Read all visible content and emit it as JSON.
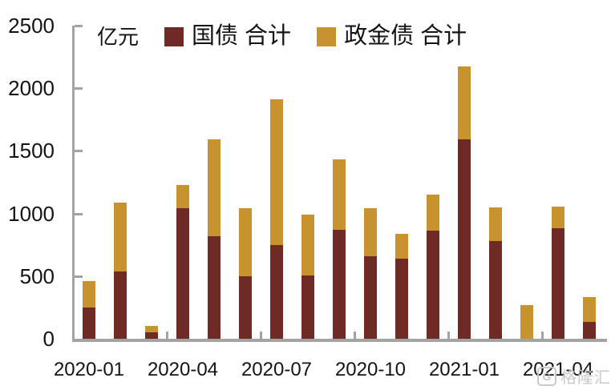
{
  "unit_label": "亿元",
  "legend": {
    "items": [
      {
        "label": "国债 合计",
        "color": "#6f2a25"
      },
      {
        "label": "政金债 合计",
        "color": "#c8922e"
      }
    ]
  },
  "watermark": {
    "logo_letter": "G",
    "text": "格隆汇"
  },
  "chart_data": {
    "type": "bar",
    "stacked": true,
    "title": "",
    "unit_label": "亿元",
    "categories": [
      "2020-01",
      "2020-02",
      "2020-03",
      "2020-04",
      "2020-05",
      "2020-06",
      "2020-07",
      "2020-08",
      "2020-09",
      "2020-10",
      "2020-11",
      "2020-12",
      "2021-01",
      "2021-02",
      "2021-03",
      "2021-04",
      "2021-05"
    ],
    "series": [
      {
        "name": "国债 合计",
        "color": "#6f2a25",
        "values": [
          250,
          535,
          50,
          1045,
          820,
          500,
          750,
          505,
          870,
          660,
          640,
          860,
          1590,
          780,
          0,
          880,
          135
        ]
      },
      {
        "name": "政金债 合计",
        "color": "#c8922e",
        "values": [
          210,
          550,
          55,
          180,
          775,
          540,
          1160,
          485,
          560,
          380,
          195,
          290,
          585,
          270,
          270,
          175,
          195
        ]
      }
    ],
    "totals": [
      460,
      1085,
      105,
      1225,
      1595,
      1040,
      1910,
      990,
      1430,
      1040,
      835,
      1150,
      2175,
      1050,
      270,
      1055,
      330
    ],
    "ylim": [
      0,
      2500
    ],
    "yticks": [
      0,
      500,
      1000,
      1500,
      2000,
      2500
    ],
    "xtick_labels": [
      "2020-01",
      "2020-04",
      "2020-07",
      "2020-10",
      "2021-01",
      "2021-04"
    ],
    "legend_position": "top",
    "grid": false,
    "axis_color": "#a3a3a3"
  }
}
